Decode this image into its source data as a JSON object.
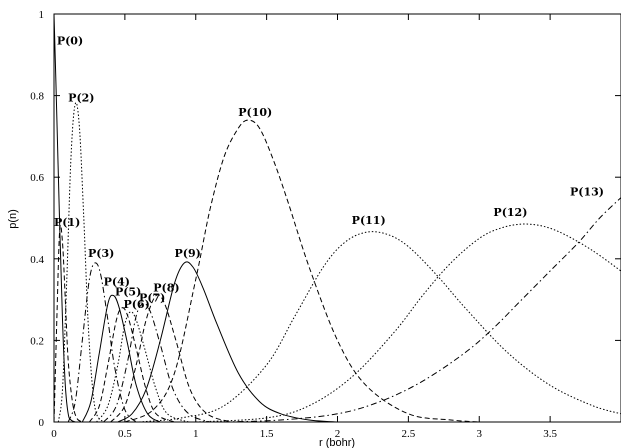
{
  "chart_data": {
    "type": "line",
    "xlabel": "r (bohr)",
    "ylabel": "p(n)",
    "xlim": [
      0,
      4
    ],
    "ylim": [
      0,
      1
    ],
    "xticks": [
      0,
      0.5,
      1,
      1.5,
      2,
      2.5,
      3,
      3.5
    ],
    "xtick_labels": [
      "0",
      "0.5",
      "1",
      "1.5",
      "2",
      "2.5",
      "3",
      "3.5"
    ],
    "yticks": [
      0,
      0.2,
      0.4,
      0.6,
      0.8,
      1
    ],
    "ytick_labels": [
      "0",
      "0.2",
      "0.4",
      "0.6",
      "0.8",
      "1"
    ],
    "grid": false,
    "series": [
      {
        "name": "P(0)",
        "dash": "solid",
        "label_at": [
          0.02,
          0.925
        ],
        "x": [
          0,
          0.02,
          0.04,
          0.06,
          0.08,
          0.1,
          0.12,
          0.15
        ],
        "y": [
          1.0,
          0.75,
          0.48,
          0.25,
          0.09,
          0.02,
          0.005,
          0
        ]
      },
      {
        "name": "P(1)",
        "dash": "dashed",
        "label_at": [
          0.0,
          0.48
        ],
        "x": [
          0,
          0.02,
          0.04,
          0.06,
          0.08,
          0.1,
          0.13,
          0.16,
          0.2
        ],
        "y": [
          0,
          0.25,
          0.47,
          0.44,
          0.3,
          0.15,
          0.05,
          0.01,
          0
        ]
      },
      {
        "name": "P(2)",
        "dash": "dotted",
        "label_at": [
          0.1,
          0.785
        ],
        "x": [
          0.03,
          0.06,
          0.09,
          0.12,
          0.15,
          0.18,
          0.21,
          0.24,
          0.27,
          0.3,
          0.35
        ],
        "y": [
          0,
          0.08,
          0.35,
          0.65,
          0.78,
          0.72,
          0.5,
          0.25,
          0.09,
          0.02,
          0
        ]
      },
      {
        "name": "P(3)",
        "dash": "dashdot",
        "label_at": [
          0.24,
          0.405
        ],
        "x": [
          0.1,
          0.15,
          0.2,
          0.25,
          0.29,
          0.33,
          0.38,
          0.43,
          0.5,
          0.58
        ],
        "y": [
          0,
          0.05,
          0.2,
          0.35,
          0.39,
          0.36,
          0.25,
          0.13,
          0.03,
          0
        ]
      },
      {
        "name": "P(4)",
        "dash": "solid",
        "label_at": [
          0.35,
          0.335
        ],
        "x": [
          0.2,
          0.26,
          0.32,
          0.38,
          0.42,
          0.46,
          0.52,
          0.58,
          0.66,
          0.75
        ],
        "y": [
          0,
          0.05,
          0.17,
          0.29,
          0.31,
          0.28,
          0.19,
          0.09,
          0.02,
          0
        ]
      },
      {
        "name": "P(5)",
        "dash": "dashed",
        "label_at": [
          0.43,
          0.31
        ],
        "x": [
          0.25,
          0.32,
          0.38,
          0.44,
          0.48,
          0.52,
          0.58,
          0.65,
          0.72,
          0.85
        ],
        "y": [
          0,
          0.04,
          0.14,
          0.25,
          0.28,
          0.26,
          0.18,
          0.08,
          0.02,
          0
        ]
      },
      {
        "name": "P(6)",
        "dash": "dotted",
        "label_at": [
          0.49,
          0.28
        ],
        "x": [
          0.3,
          0.38,
          0.45,
          0.5,
          0.54,
          0.58,
          0.64,
          0.72,
          0.8,
          0.95
        ],
        "y": [
          0,
          0.04,
          0.14,
          0.24,
          0.27,
          0.25,
          0.18,
          0.08,
          0.02,
          0
        ]
      },
      {
        "name": "P(7)",
        "dash": "dashdot",
        "label_at": [
          0.6,
          0.295
        ],
        "x": [
          0.35,
          0.44,
          0.52,
          0.58,
          0.63,
          0.68,
          0.75,
          0.84,
          0.95,
          1.1
        ],
        "y": [
          0,
          0.04,
          0.15,
          0.26,
          0.29,
          0.27,
          0.19,
          0.08,
          0.02,
          0
        ]
      },
      {
        "name": "P(8)",
        "dash": "dashed",
        "label_at": [
          0.7,
          0.32
        ],
        "x": [
          0.4,
          0.5,
          0.58,
          0.65,
          0.72,
          0.78,
          0.86,
          0.96,
          1.08,
          1.25
        ],
        "y": [
          0,
          0.04,
          0.14,
          0.25,
          0.31,
          0.29,
          0.2,
          0.08,
          0.02,
          0
        ]
      },
      {
        "name": "P(9)",
        "dash": "solid",
        "label_at": [
          0.85,
          0.405
        ],
        "x": [
          0.45,
          0.55,
          0.65,
          0.75,
          0.85,
          0.92,
          0.98,
          1.05,
          1.15,
          1.3,
          1.45,
          1.6,
          1.8,
          2.0
        ],
        "y": [
          0,
          0.02,
          0.08,
          0.2,
          0.34,
          0.39,
          0.38,
          0.33,
          0.24,
          0.12,
          0.05,
          0.02,
          0.005,
          0
        ]
      },
      {
        "name": "P(10)",
        "dash": "dashed",
        "label_at": [
          1.3,
          0.75
        ],
        "x": [
          0.5,
          0.7,
          0.85,
          1.0,
          1.1,
          1.2,
          1.3,
          1.37,
          1.45,
          1.55,
          1.65,
          1.8,
          2.0,
          2.2,
          2.5,
          2.8,
          3.0
        ],
        "y": [
          0,
          0.03,
          0.12,
          0.35,
          0.52,
          0.65,
          0.72,
          0.74,
          0.72,
          0.64,
          0.54,
          0.38,
          0.2,
          0.09,
          0.02,
          0.005,
          0
        ]
      },
      {
        "name": "P(11)",
        "dash": "dotted",
        "label_at": [
          2.1,
          0.485
        ],
        "x": [
          0.6,
          0.9,
          1.2,
          1.5,
          1.7,
          1.9,
          2.05,
          2.2,
          2.35,
          2.5,
          2.7,
          2.9,
          3.2,
          3.5,
          3.8,
          4.0
        ],
        "y": [
          0,
          0.01,
          0.04,
          0.14,
          0.26,
          0.38,
          0.44,
          0.465,
          0.46,
          0.43,
          0.36,
          0.28,
          0.17,
          0.09,
          0.04,
          0.02
        ]
      },
      {
        "name": "P(12)",
        "dash": "dotted",
        "label_at": [
          3.1,
          0.505
        ],
        "x": [
          1.0,
          1.5,
          1.8,
          2.1,
          2.4,
          2.6,
          2.8,
          3.0,
          3.15,
          3.3,
          3.45,
          3.6,
          3.8,
          4.0
        ],
        "y": [
          0,
          0.01,
          0.04,
          0.11,
          0.22,
          0.31,
          0.39,
          0.45,
          0.475,
          0.485,
          0.48,
          0.46,
          0.42,
          0.37
        ]
      },
      {
        "name": "P(13)",
        "dash": "dashdot",
        "label_at": [
          3.64,
          0.555
        ],
        "x": [
          1.2,
          1.6,
          2.0,
          2.3,
          2.6,
          2.9,
          3.1,
          3.3,
          3.5,
          3.7,
          3.85,
          4.0
        ],
        "y": [
          0,
          0.005,
          0.02,
          0.05,
          0.1,
          0.17,
          0.23,
          0.3,
          0.37,
          0.44,
          0.5,
          0.55
        ]
      }
    ]
  }
}
